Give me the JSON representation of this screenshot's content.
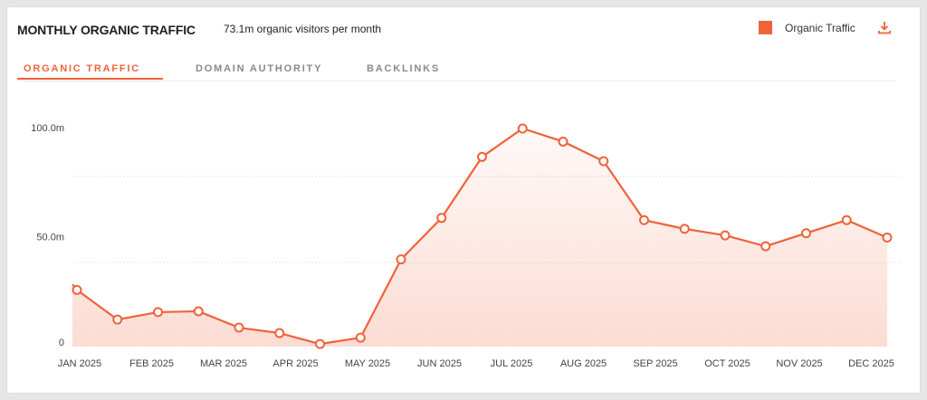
{
  "header": {
    "title": "MONTHLY ORGANIC TRAFFIC",
    "subtitle": "73.1m organic visitors per month",
    "legend_label": "Organic Traffic",
    "download_icon": "download-icon"
  },
  "tabs": [
    {
      "label": "ORGANIC TRAFFIC",
      "active": true
    },
    {
      "label": "DOMAIN AUTHORITY",
      "active": false
    },
    {
      "label": "BACKLINKS",
      "active": false
    }
  ],
  "colors": {
    "accent": "#f0623a"
  },
  "chart_data": {
    "type": "area",
    "title": "MONTHLY ORGANIC TRAFFIC",
    "xlabel": "",
    "ylabel": "",
    "ylim": [
      0,
      100
    ],
    "y_ticks": [
      {
        "value": 0,
        "label": "0"
      },
      {
        "value": 50,
        "label": "50.0m"
      },
      {
        "value": 100,
        "label": "100.0m"
      }
    ],
    "x_tick_labels": [
      "JAN 2025",
      "FEB 2025",
      "MAR 2025",
      "APR 2025",
      "MAY 2025",
      "JUN 2025",
      "JUL 2025",
      "AUG 2025",
      "SEP 2025",
      "OCT 2025",
      "NOV 2025",
      "DEC 2025"
    ],
    "series": [
      {
        "name": "Organic Traffic",
        "unit": "millions",
        "values": [
          26,
          12.4,
          15.8,
          16.2,
          8.7,
          6.2,
          1.2,
          4.1,
          40,
          59,
          87,
          100,
          94,
          85,
          58,
          54,
          51,
          46,
          52,
          58,
          50
        ]
      }
    ],
    "legend": "top-right"
  }
}
